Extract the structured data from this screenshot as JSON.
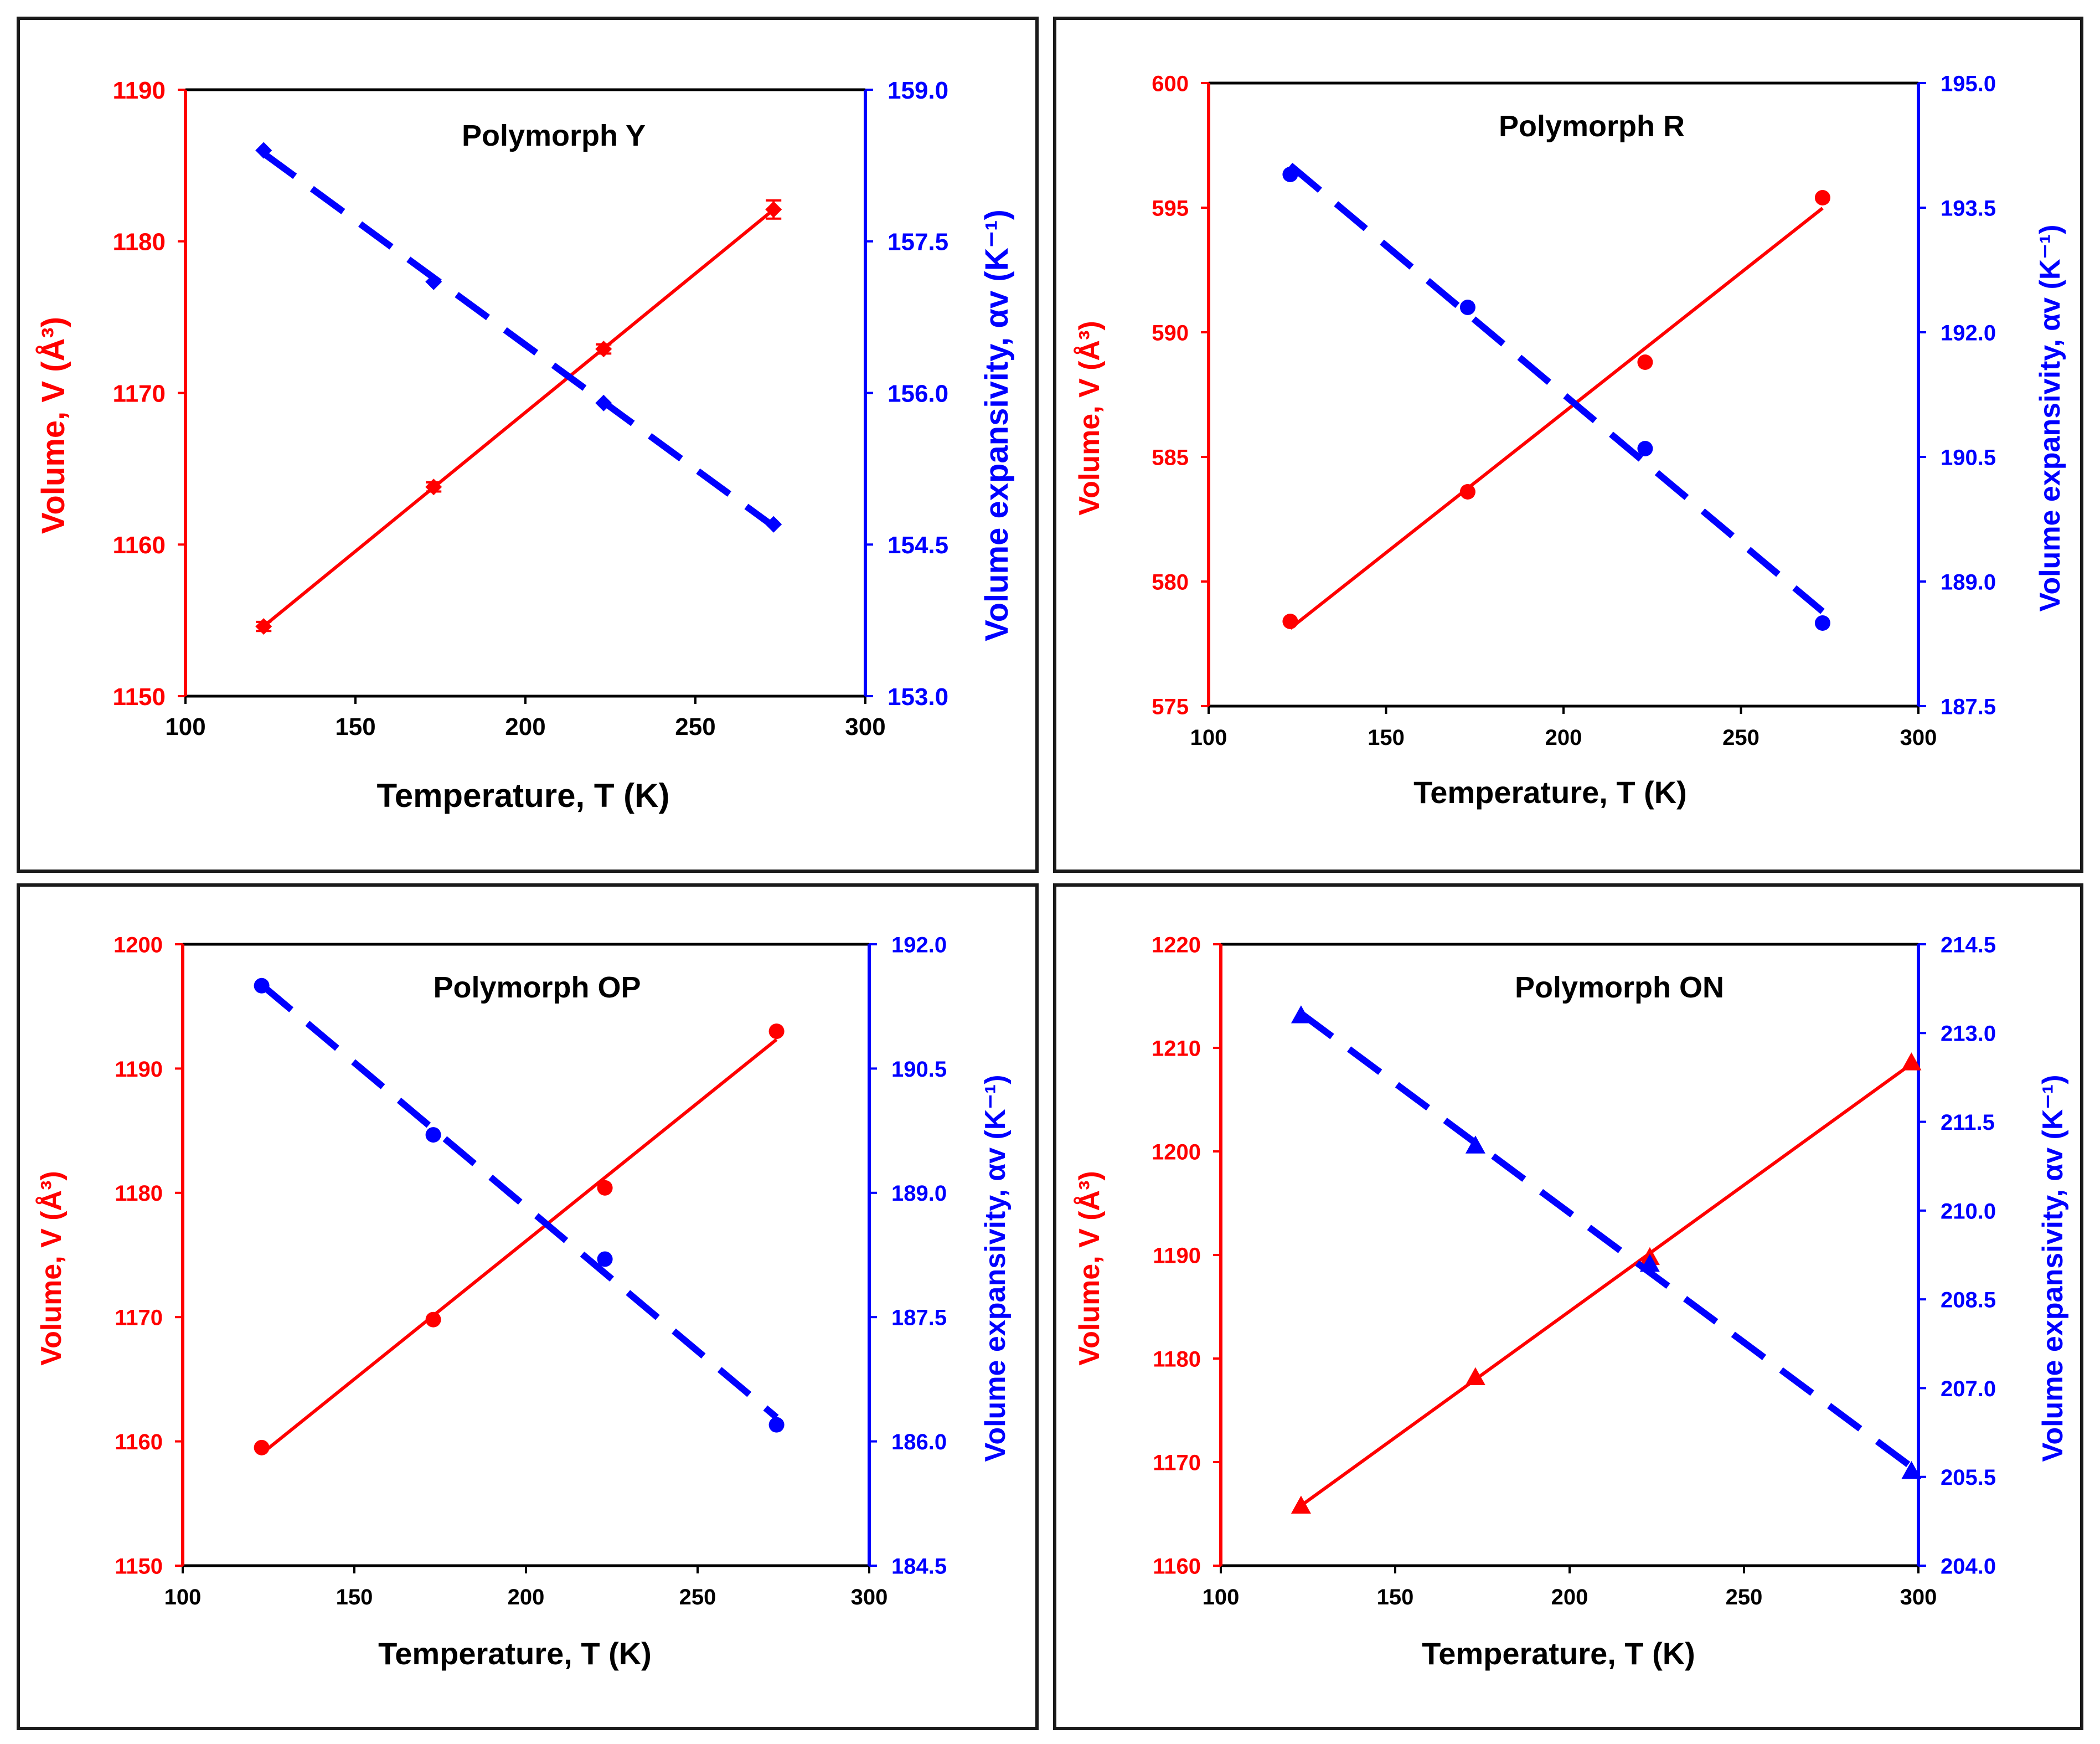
{
  "figure": {
    "colors": {
      "volume": "#ff0000",
      "expansivity": "#0000ff",
      "axis": "#000000"
    }
  },
  "chart_data": [
    {
      "type": "line",
      "title": "Polymorph Y",
      "xlabel": "Temperature, T (K)",
      "ylabel": "Volume, V (Å³)",
      "y2label": "Volume expansivity, αv (K⁻¹)",
      "xlim": [
        100,
        300
      ],
      "xticks": [
        100,
        150,
        200,
        250,
        300
      ],
      "ylim": [
        1150,
        1190
      ],
      "yticks": [
        1150,
        1160,
        1170,
        1180,
        1190
      ],
      "ytick_labels": [
        "1150",
        "1160",
        "1170",
        "1180",
        "1190"
      ],
      "y2lim": [
        153.0,
        159.0
      ],
      "y2ticks": [
        153.0,
        154.5,
        156.0,
        157.5,
        159.0
      ],
      "y2tick_labels": [
        "153.0",
        "154.5",
        "156.0",
        "157.5",
        "159.0"
      ],
      "marker": "diamond",
      "series": [
        {
          "name": "Volume",
          "axis": "left",
          "style": "solid",
          "x": [
            123,
            173,
            223,
            273
          ],
          "values": [
            1154.6,
            1163.8,
            1172.9,
            1182.1
          ],
          "error": [
            0.3,
            0.3,
            0.3,
            0.6
          ]
        },
        {
          "name": "Volume expansivity",
          "axis": "right",
          "style": "dashed",
          "x": [
            123,
            173,
            223,
            273
          ],
          "values": [
            158.4,
            157.1,
            155.9,
            154.7
          ]
        }
      ]
    },
    {
      "type": "line",
      "title": "Polymorph R",
      "xlabel": "Temperature, T (K)",
      "ylabel": "Volume, V (Å³)",
      "y2label": "Volume expansivity, αv (K⁻¹)",
      "xlim": [
        100,
        300
      ],
      "xticks": [
        100,
        150,
        200,
        250,
        300
      ],
      "ylim": [
        575,
        600
      ],
      "yticks": [
        575,
        580,
        585,
        590,
        595,
        600
      ],
      "ytick_labels": [
        "575",
        "580",
        "585",
        "590",
        "595",
        "600"
      ],
      "y2lim": [
        187.5,
        195.0
      ],
      "y2ticks": [
        187.5,
        189.0,
        190.5,
        192.0,
        193.5,
        195.0
      ],
      "y2tick_labels": [
        "187.5",
        "189.0",
        "190.5",
        "192.0",
        "193.5",
        "195.0"
      ],
      "marker": "circle",
      "series": [
        {
          "name": "Volume",
          "axis": "left",
          "style": "solid",
          "x": [
            123,
            173,
            223,
            273
          ],
          "values": [
            578.4,
            583.6,
            588.8,
            595.4
          ]
        },
        {
          "name": "Volume expansivity",
          "axis": "right",
          "style": "dashed",
          "x": [
            123,
            173,
            223,
            273
          ],
          "values": [
            193.9,
            192.3,
            190.6,
            188.5
          ]
        }
      ]
    },
    {
      "type": "line",
      "title": "Polymorph OP",
      "xlabel": "Temperature, T (K)",
      "ylabel": "Volume, V (Å³)",
      "y2label": "Volume expansivity, αv (K⁻¹)",
      "xlim": [
        100,
        300
      ],
      "xticks": [
        100,
        150,
        200,
        250,
        300
      ],
      "ylim": [
        1150,
        1200
      ],
      "yticks": [
        1150,
        1160,
        1170,
        1180,
        1190,
        1200
      ],
      "ytick_labels": [
        "1150",
        "1160",
        "1170",
        "1180",
        "1190",
        "1200"
      ],
      "y2lim": [
        184.5,
        192.0
      ],
      "y2ticks": [
        184.5,
        186.0,
        187.5,
        189.0,
        190.5,
        192.0
      ],
      "y2tick_labels": [
        "184.5",
        "186.0",
        "187.5",
        "189.0",
        "190.5",
        "192.0"
      ],
      "marker": "circle",
      "series": [
        {
          "name": "Volume",
          "axis": "left",
          "style": "solid",
          "x": [
            123,
            173,
            223,
            273
          ],
          "values": [
            1159.5,
            1169.8,
            1180.4,
            1193.0
          ]
        },
        {
          "name": "Volume expansivity",
          "axis": "right",
          "style": "dashed",
          "x": [
            123,
            173,
            223,
            273
          ],
          "values": [
            191.5,
            189.7,
            188.2,
            186.2
          ]
        }
      ]
    },
    {
      "type": "line",
      "title": "Polymorph ON",
      "xlabel": "Temperature, T (K)",
      "ylabel": "Volume, V (Å³)",
      "y2label": "Volume expansivity, αv (K⁻¹)",
      "xlim": [
        100,
        300
      ],
      "xticks": [
        100,
        150,
        200,
        250,
        300
      ],
      "ylim": [
        1160,
        1220
      ],
      "yticks": [
        1160,
        1170,
        1180,
        1190,
        1200,
        1210,
        1220
      ],
      "ytick_labels": [
        "1160",
        "1170",
        "1180",
        "1190",
        "1200",
        "1210",
        "1220"
      ],
      "y2lim": [
        204.0,
        214.5
      ],
      "y2ticks": [
        204.0,
        205.5,
        207.0,
        208.5,
        210.0,
        211.5,
        213.0,
        214.5
      ],
      "y2tick_labels": [
        "204.0",
        "205.5",
        "207.0",
        "208.5",
        "210.0",
        "211.5",
        "213.0",
        "214.5"
      ],
      "marker": "triangle",
      "series": [
        {
          "name": "Volume",
          "axis": "left",
          "style": "solid",
          "x": [
            123,
            173,
            223,
            298
          ],
          "values": [
            1165.8,
            1178.2,
            1189.8,
            1208.6
          ]
        },
        {
          "name": "Volume expansivity",
          "axis": "right",
          "style": "dashed",
          "x": [
            123,
            173,
            223,
            298
          ],
          "values": [
            213.3,
            211.1,
            209.1,
            205.6
          ]
        }
      ]
    }
  ]
}
